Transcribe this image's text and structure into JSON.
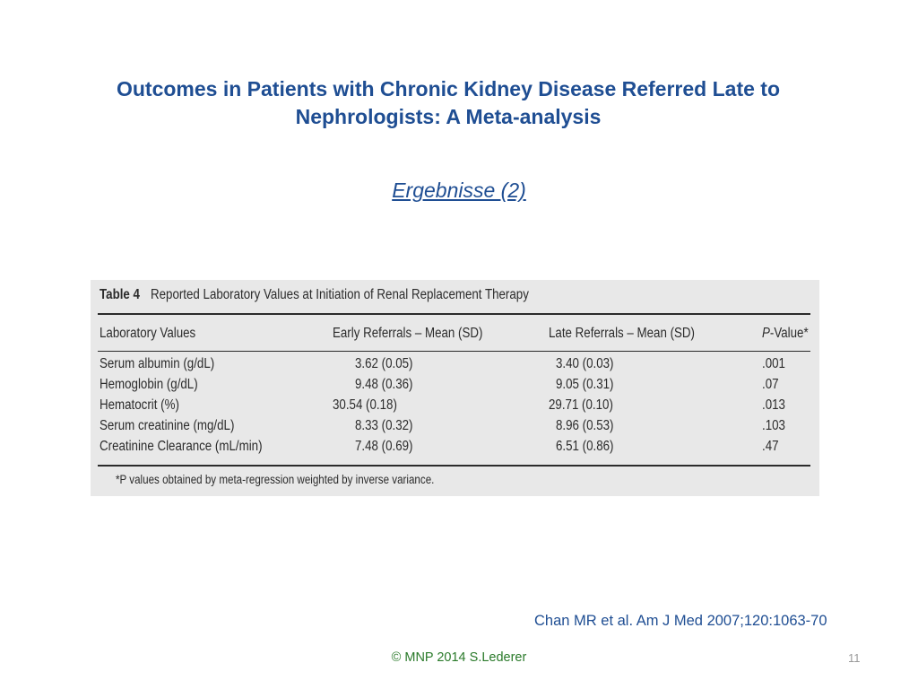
{
  "slide": {
    "title_line1": "Outcomes in Patients with Chronic Kidney Disease Referred Late to",
    "title_line2": "Nephrologists: A Meta-analysis",
    "subtitle": "Ergebnisse (2)",
    "citation": "Chan MR et al. Am J Med 2007;120:1063-70",
    "copyright": "© MNP 2014 S.Lederer",
    "page_number": "11"
  },
  "table": {
    "caption_number": "Table 4",
    "caption_text": "Reported Laboratory Values at Initiation of Renal Replacement Therapy",
    "headers": [
      "Laboratory Values",
      "Early Referrals – Mean (SD)",
      "Late Referrals – Mean (SD)",
      "P-Value*"
    ],
    "rows": [
      [
        "Serum albumin (g/dL)",
        "3.62 (0.05)",
        "3.40 (0.03)",
        ".001"
      ],
      [
        "Hemoglobin (g/dL)",
        "9.48 (0.36)",
        "9.05 (0.31)",
        ".07"
      ],
      [
        "Hematocrit (%)",
        "30.54 (0.18)",
        "29.71 (0.10)",
        ".013"
      ],
      [
        "Serum creatinine (mg/dL)",
        "8.33 (0.32)",
        "8.96 (0.53)",
        ".103"
      ],
      [
        "Creatinine Clearance (mL/min)",
        "7.48 (0.69)",
        "6.51 (0.86)",
        ".47"
      ]
    ],
    "footnote": "*P values obtained by meta-regression weighted by inverse variance."
  }
}
